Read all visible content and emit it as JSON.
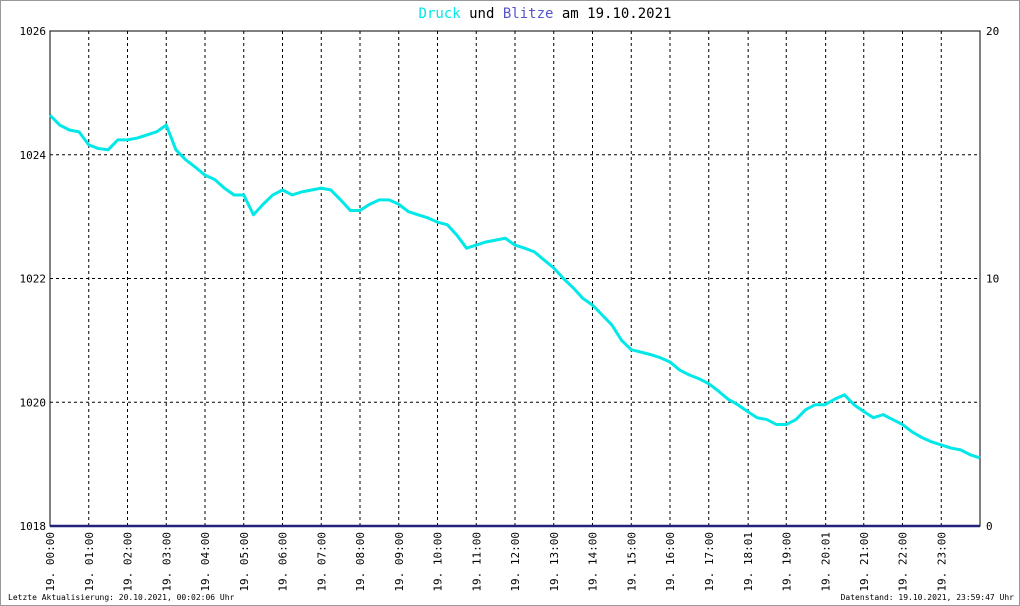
{
  "chart_data": {
    "type": "line",
    "title_joiner": "und",
    "title_suffix": "am 19.10.2021",
    "footer_left": "Letzte Aktualisierung: 20.10.2021, 00:02:06 Uhr",
    "footer_right": "Datenstand: 19.10.2021, 23:59:47 Uhr",
    "xlim": [
      0,
      24
    ],
    "xticks": [
      {
        "value": 0,
        "label": "19. 00:00"
      },
      {
        "value": 1,
        "label": "19. 01:00"
      },
      {
        "value": 2,
        "label": "19. 02:00"
      },
      {
        "value": 3,
        "label": "19. 03:00"
      },
      {
        "value": 4,
        "label": "19. 04:00"
      },
      {
        "value": 5,
        "label": "19. 05:00"
      },
      {
        "value": 6,
        "label": "19. 06:00"
      },
      {
        "value": 7,
        "label": "19. 07:00"
      },
      {
        "value": 8,
        "label": "19. 08:00"
      },
      {
        "value": 9,
        "label": "19. 09:00"
      },
      {
        "value": 10,
        "label": "19. 10:00"
      },
      {
        "value": 11,
        "label": "19. 11:00"
      },
      {
        "value": 12,
        "label": "19. 12:00"
      },
      {
        "value": 13,
        "label": "19. 13:00"
      },
      {
        "value": 14,
        "label": "19. 14:00"
      },
      {
        "value": 15,
        "label": "19. 15:00"
      },
      {
        "value": 16,
        "label": "19. 16:00"
      },
      {
        "value": 17,
        "label": "19. 17:00"
      },
      {
        "value": 18.017,
        "label": "19. 18:01"
      },
      {
        "value": 19,
        "label": "19. 19:00"
      },
      {
        "value": 20.017,
        "label": "19. 20:01"
      },
      {
        "value": 21,
        "label": "19. 21:00"
      },
      {
        "value": 22,
        "label": "19. 22:00"
      },
      {
        "value": 23,
        "label": "19. 23:00"
      }
    ],
    "ylim": [
      1018,
      1026
    ],
    "yticks": [
      1018,
      1020,
      1022,
      1024,
      1026
    ],
    "y2lim": [
      0,
      20
    ],
    "y2ticks": [
      0,
      10,
      20
    ],
    "grid": true,
    "series": [
      {
        "name": "Druck",
        "color": "#00e8e8",
        "x": [
          0,
          0.25,
          0.5,
          0.75,
          1,
          1.25,
          1.5,
          1.75,
          2,
          2.25,
          2.5,
          2.75,
          3,
          3.25,
          3.5,
          3.75,
          4,
          4.25,
          4.5,
          4.75,
          5,
          5.25,
          5.5,
          5.75,
          6,
          6.25,
          6.5,
          6.75,
          7,
          7.25,
          7.5,
          7.75,
          8,
          8.25,
          8.5,
          8.75,
          9,
          9.25,
          9.5,
          9.75,
          10,
          10.25,
          10.5,
          10.75,
          11,
          11.25,
          11.5,
          11.75,
          12,
          12.25,
          12.5,
          12.75,
          13,
          13.25,
          13.5,
          13.75,
          14,
          14.25,
          14.5,
          14.75,
          15,
          15.25,
          15.5,
          15.75,
          16,
          16.25,
          16.5,
          16.75,
          17,
          17.25,
          17.5,
          17.75,
          18,
          18.25,
          18.5,
          18.75,
          19,
          19.25,
          19.5,
          19.75,
          20,
          20.25,
          20.5,
          20.75,
          21,
          21.25,
          21.5,
          21.75,
          22,
          22.25,
          22.5,
          22.75,
          23,
          23.25,
          23.5,
          23.75,
          24
        ],
        "values": [
          1024.64,
          1024.48,
          1024.4,
          1024.37,
          1024.16,
          1024.1,
          1024.08,
          1024.24,
          1024.24,
          1024.27,
          1024.32,
          1024.37,
          1024.48,
          1024.08,
          1023.92,
          1023.8,
          1023.67,
          1023.6,
          1023.46,
          1023.35,
          1023.35,
          1023.03,
          1023.2,
          1023.35,
          1023.43,
          1023.35,
          1023.4,
          1023.43,
          1023.46,
          1023.43,
          1023.27,
          1023.1,
          1023.1,
          1023.2,
          1023.27,
          1023.27,
          1023.2,
          1023.08,
          1023.03,
          1022.98,
          1022.91,
          1022.87,
          1022.7,
          1022.49,
          1022.54,
          1022.59,
          1022.62,
          1022.65,
          1022.54,
          1022.49,
          1022.43,
          1022.3,
          1022.17,
          1022.0,
          1021.85,
          1021.68,
          1021.57,
          1021.41,
          1021.25,
          1021.0,
          1020.85,
          1020.81,
          1020.77,
          1020.72,
          1020.65,
          1020.52,
          1020.44,
          1020.38,
          1020.3,
          1020.18,
          1020.05,
          1019.96,
          1019.85,
          1019.75,
          1019.72,
          1019.64,
          1019.64,
          1019.72,
          1019.88,
          1019.96,
          1019.96,
          1020.05,
          1020.12,
          1019.96,
          1019.85,
          1019.75,
          1019.8,
          1019.72,
          1019.64,
          1019.52,
          1019.43,
          1019.36,
          1019.31,
          1019.26,
          1019.23,
          1019.15,
          1019.1
        ]
      },
      {
        "name": "Blitze",
        "color": "#22227a",
        "axis": "y2",
        "x": [
          0,
          24
        ],
        "values": [
          0,
          0
        ]
      }
    ]
  }
}
